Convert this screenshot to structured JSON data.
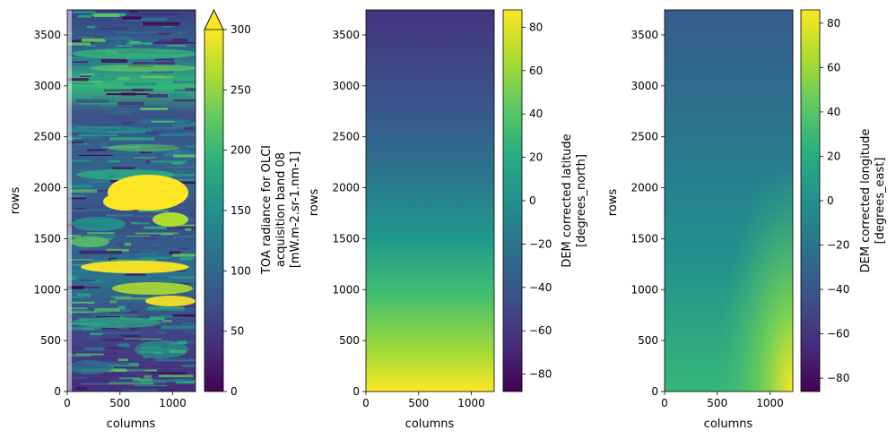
{
  "chart_data": [
    {
      "type": "heatmap",
      "xlabel": "columns",
      "ylabel": "rows",
      "xlim": [
        0,
        1217
      ],
      "ylim": [
        0,
        3746
      ],
      "xticks": [
        0,
        500,
        1000
      ],
      "yticks": [
        0,
        500,
        1000,
        1500,
        2000,
        2500,
        3000,
        3500
      ],
      "colormap": "viridis",
      "colorbar": {
        "label_lines": [
          "TOA radiance for OLCI",
          "acquisition band 08",
          "[mW.m-2.sr-1.nm-1]"
        ],
        "range": [
          0,
          300
        ],
        "ticks": [
          0,
          50,
          100,
          150,
          200,
          250,
          300
        ],
        "extend": "max"
      },
      "bright_regions_rows": [
        {
          "rows": [
            1850,
            2150
          ],
          "cols": [
            350,
            1000
          ],
          "value": 300
        },
        {
          "rows": [
            1150,
            1300
          ],
          "cols": [
            300,
            1100
          ],
          "value": 260
        },
        {
          "rows": [
            850,
            1050
          ],
          "cols": [
            500,
            1200
          ],
          "value": 230
        },
        {
          "rows": [
            2900,
            3250
          ],
          "cols": [
            0,
            1217
          ],
          "value": 150
        }
      ]
    },
    {
      "type": "heatmap",
      "xlabel": "columns",
      "ylabel": "rows",
      "xlim": [
        0,
        1217
      ],
      "ylim": [
        0,
        3746
      ],
      "xticks": [
        0,
        500,
        1000
      ],
      "yticks": [
        0,
        500,
        1000,
        1500,
        2000,
        2500,
        3000,
        3500
      ],
      "colormap": "viridis",
      "colorbar": {
        "label_lines": [
          "DEM corrected latitude",
          "[degrees_north]"
        ],
        "range": [
          -88,
          88
        ],
        "ticks": [
          -80,
          -60,
          -40,
          -20,
          0,
          20,
          40,
          60,
          80
        ]
      },
      "value_at_row": [
        {
          "row": 0,
          "value": 88
        },
        {
          "row": 1000,
          "value": 40
        },
        {
          "row": 2000,
          "value": -5
        },
        {
          "row": 3000,
          "value": -45
        },
        {
          "row": 3746,
          "value": -70
        }
      ]
    },
    {
      "type": "heatmap",
      "xlabel": "columns",
      "ylabel": "rows",
      "xlim": [
        0,
        1217
      ],
      "ylim": [
        0,
        3746
      ],
      "xticks": [
        0,
        500,
        1000
      ],
      "yticks": [
        0,
        500,
        1000,
        1500,
        2000,
        2500,
        3000,
        3500
      ],
      "colormap": "viridis",
      "colorbar": {
        "label_lines": [
          "DEM corrected longitude",
          "[degrees_east]"
        ],
        "range": [
          -86,
          86
        ],
        "ticks": [
          -80,
          -60,
          -40,
          -20,
          0,
          20,
          40,
          60,
          80
        ]
      },
      "value_at_row": [
        {
          "row": 0,
          "value": 40
        },
        {
          "row": 500,
          "value": 25
        },
        {
          "row": 1500,
          "value": 10
        },
        {
          "row": 2500,
          "value": -5
        },
        {
          "row": 3746,
          "value": -30
        }
      ]
    }
  ]
}
